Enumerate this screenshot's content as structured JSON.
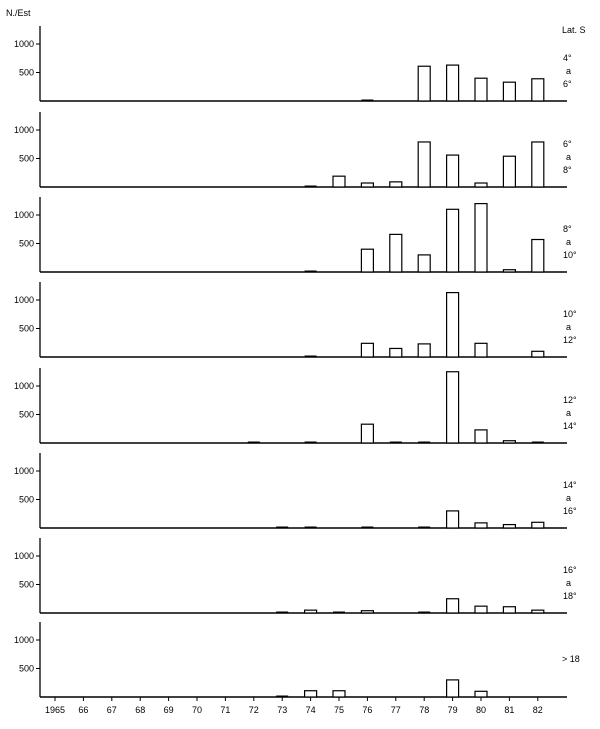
{
  "figure": {
    "ylabel": "N./Est",
    "region_label": "Lat. S",
    "connector": "a",
    "years": [
      "1965",
      "66",
      "67",
      "68",
      "69",
      "70",
      "71",
      "72",
      "73",
      "74",
      "75",
      "76",
      "77",
      "78",
      "79",
      "80",
      "81",
      "82"
    ],
    "yticks": [
      500,
      1000
    ]
  },
  "chart_data": {
    "type": "bar",
    "title": "",
    "xlabel": "",
    "ylabel": "N./Est",
    "categories": [
      "1965",
      "66",
      "67",
      "68",
      "69",
      "70",
      "71",
      "72",
      "73",
      "74",
      "75",
      "76",
      "77",
      "78",
      "79",
      "80",
      "81",
      "82"
    ],
    "ylim": [
      0,
      1250
    ],
    "grid": false,
    "legend": "panel labels on right (latitude bands, Lat. S)",
    "series": [
      {
        "name": "4° a 6°",
        "values": [
          0,
          0,
          0,
          0,
          0,
          0,
          0,
          0,
          0,
          0,
          0,
          20,
          0,
          610,
          630,
          400,
          330,
          390
        ]
      },
      {
        "name": "6° a 8°",
        "values": [
          0,
          0,
          0,
          0,
          0,
          0,
          0,
          0,
          0,
          20,
          190,
          70,
          90,
          790,
          560,
          70,
          540,
          790
        ]
      },
      {
        "name": "8° a 10°",
        "values": [
          0,
          0,
          0,
          0,
          0,
          0,
          0,
          0,
          0,
          20,
          0,
          400,
          660,
          300,
          1100,
          1200,
          40,
          570
        ]
      },
      {
        "name": "10° a 12°",
        "values": [
          0,
          0,
          0,
          0,
          0,
          0,
          0,
          0,
          0,
          20,
          0,
          240,
          150,
          230,
          1130,
          240,
          0,
          100
        ]
      },
      {
        "name": "12° a 14°",
        "values": [
          0,
          0,
          0,
          0,
          0,
          0,
          0,
          20,
          0,
          20,
          0,
          330,
          20,
          10,
          1250,
          230,
          40,
          20
        ]
      },
      {
        "name": "14° a 16°",
        "values": [
          0,
          0,
          0,
          0,
          0,
          0,
          0,
          0,
          10,
          10,
          0,
          20,
          0,
          10,
          300,
          90,
          60,
          100
        ]
      },
      {
        "name": "16° a 18°",
        "values": [
          0,
          0,
          0,
          0,
          0,
          0,
          0,
          0,
          10,
          50,
          10,
          40,
          0,
          20,
          250,
          120,
          110,
          50
        ]
      },
      {
        "name": "> 18",
        "values": [
          0,
          0,
          0,
          0,
          0,
          0,
          0,
          0,
          10,
          110,
          110,
          0,
          0,
          0,
          300,
          100,
          0,
          0
        ]
      }
    ]
  },
  "panels": [
    {
      "top": "4°",
      "bottom": "6°",
      "single": ""
    },
    {
      "top": "6°",
      "bottom": "8°",
      "single": ""
    },
    {
      "top": "8°",
      "bottom": "10°",
      "single": ""
    },
    {
      "top": "10°",
      "bottom": "12°",
      "single": ""
    },
    {
      "top": "12°",
      "bottom": "14°",
      "single": ""
    },
    {
      "top": "14°",
      "bottom": "16°",
      "single": ""
    },
    {
      "top": "16°",
      "bottom": "18°",
      "single": ""
    },
    {
      "top": "",
      "bottom": "",
      "single": "> 18"
    }
  ]
}
